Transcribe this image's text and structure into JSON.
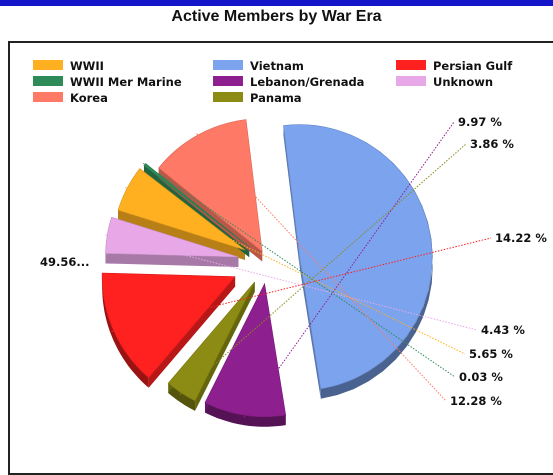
{
  "chart_data": {
    "type": "pie",
    "title": "Active Members by War Era",
    "legend_position": "top",
    "slices": [
      {
        "label": "Vietnam",
        "value": 49.56,
        "display": "49.56...",
        "color": "#7ba3ee"
      },
      {
        "label": "Lebanon/Grenada",
        "value": 9.97,
        "display": "9.97 %",
        "color": "#8e1f8e"
      },
      {
        "label": "Panama",
        "value": 3.86,
        "display": "3.86 %",
        "color": "#8c8c14"
      },
      {
        "label": "Persian Gulf",
        "value": 14.22,
        "display": "14.22 %",
        "color": "#ff2020"
      },
      {
        "label": "Unknown",
        "value": 4.43,
        "display": "4.43 %",
        "color": "#e8a8e8"
      },
      {
        "label": "WWII",
        "value": 5.65,
        "display": "5.65 %",
        "color": "#ffb020"
      },
      {
        "label": "WWII Mer Marine",
        "value": 0.03,
        "display": "0.03 %",
        "color": "#2e8b57"
      },
      {
        "label": "Korea",
        "value": 12.28,
        "display": "12.28 %",
        "color": "#ff7a66"
      }
    ],
    "legend": [
      [
        "WWII",
        "Vietnam",
        "Persian Gulf"
      ],
      [
        "WWII Mer Marine",
        "Lebanon/Grenada",
        "Unknown"
      ],
      [
        "Korea",
        "Panama"
      ]
    ]
  }
}
